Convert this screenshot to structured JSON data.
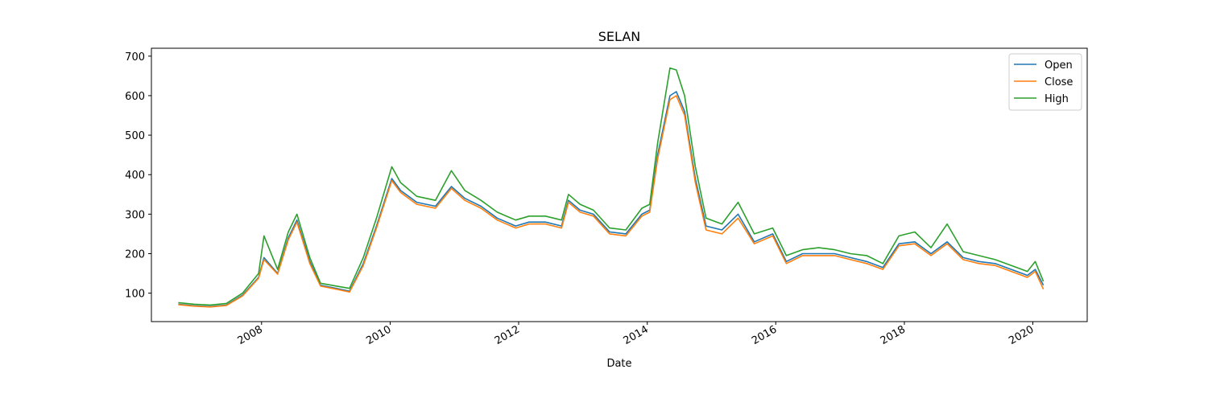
{
  "chart_data": {
    "type": "line",
    "title": "SELAN",
    "xlabel": "Date",
    "ylabel": "",
    "xlim": [
      "2006-04-15",
      "2020-11-05"
    ],
    "ylim": [
      28,
      720
    ],
    "x_ticks": [
      "2008-01-01",
      "2010-01-01",
      "2012-01-01",
      "2014-01-01",
      "2016-01-01",
      "2018-01-01",
      "2020-01-01"
    ],
    "x_tick_labels": [
      "2008",
      "2010",
      "2012",
      "2014",
      "2016",
      "2018",
      "2020"
    ],
    "y_ticks": [
      100,
      200,
      300,
      400,
      500,
      600,
      700
    ],
    "y_tick_labels": [
      "100",
      "200",
      "300",
      "400",
      "500",
      "600",
      "700"
    ],
    "grid": false,
    "legend_position": "top-right",
    "series": [
      {
        "name": "Open",
        "color": "#1f77b4",
        "x": [
          "2006-09-15",
          "2006-12-15",
          "2007-03-15",
          "2007-06-15",
          "2007-09-15",
          "2007-12-15",
          "2008-01-15",
          "2008-04-01",
          "2008-06-01",
          "2008-07-20",
          "2008-10-01",
          "2008-12-01",
          "2009-03-01",
          "2009-05-15",
          "2009-08-01",
          "2009-10-15",
          "2010-01-10",
          "2010-03-01",
          "2010-06-01",
          "2010-09-15",
          "2010-12-15",
          "2011-03-01",
          "2011-06-01",
          "2011-09-01",
          "2011-12-15",
          "2012-03-01",
          "2012-06-01",
          "2012-09-01",
          "2012-10-10",
          "2012-12-15",
          "2013-03-01",
          "2013-06-01",
          "2013-09-01",
          "2013-12-01",
          "2014-01-15",
          "2014-03-01",
          "2014-05-10",
          "2014-06-15",
          "2014-08-01",
          "2014-10-01",
          "2014-12-01",
          "2015-03-01",
          "2015-06-01",
          "2015-09-01",
          "2015-12-15",
          "2016-03-01",
          "2016-06-01",
          "2016-09-01",
          "2016-12-01",
          "2017-03-01",
          "2017-06-01",
          "2017-09-01",
          "2017-12-01",
          "2018-03-01",
          "2018-06-01",
          "2018-09-01",
          "2018-12-01",
          "2019-03-01",
          "2019-06-01",
          "2019-09-01",
          "2019-12-01",
          "2020-01-15",
          "2020-03-01"
        ],
        "values": [
          72,
          68,
          66,
          70,
          95,
          140,
          190,
          150,
          240,
          285,
          180,
          120,
          112,
          105,
          175,
          270,
          390,
          360,
          330,
          320,
          370,
          340,
          320,
          290,
          270,
          280,
          280,
          270,
          335,
          310,
          300,
          255,
          250,
          300,
          310,
          450,
          600,
          610,
          560,
          390,
          270,
          260,
          300,
          230,
          250,
          180,
          200,
          200,
          200,
          190,
          180,
          165,
          225,
          230,
          200,
          230,
          190,
          180,
          175,
          160,
          145,
          160,
          120
        ]
      },
      {
        "name": "Close",
        "color": "#ff7f0e",
        "x": [
          "2006-09-15",
          "2006-12-15",
          "2007-03-15",
          "2007-06-15",
          "2007-09-15",
          "2007-12-15",
          "2008-01-15",
          "2008-04-01",
          "2008-06-01",
          "2008-07-20",
          "2008-10-01",
          "2008-12-01",
          "2009-03-01",
          "2009-05-15",
          "2009-08-01",
          "2009-10-15",
          "2010-01-10",
          "2010-03-01",
          "2010-06-01",
          "2010-09-15",
          "2010-12-15",
          "2011-03-01",
          "2011-06-01",
          "2011-09-01",
          "2011-12-15",
          "2012-03-01",
          "2012-06-01",
          "2012-09-01",
          "2012-10-10",
          "2012-12-15",
          "2013-03-01",
          "2013-06-01",
          "2013-09-01",
          "2013-12-01",
          "2014-01-15",
          "2014-03-01",
          "2014-05-10",
          "2014-06-15",
          "2014-08-01",
          "2014-10-01",
          "2014-12-01",
          "2015-03-01",
          "2015-06-01",
          "2015-09-01",
          "2015-12-15",
          "2016-03-01",
          "2016-06-01",
          "2016-09-01",
          "2016-12-01",
          "2017-03-01",
          "2017-06-01",
          "2017-09-01",
          "2017-12-01",
          "2018-03-01",
          "2018-06-01",
          "2018-09-01",
          "2018-12-01",
          "2019-03-01",
          "2019-06-01",
          "2019-09-01",
          "2019-12-01",
          "2020-01-15",
          "2020-03-01"
        ],
        "values": [
          71,
          67,
          65,
          69,
          93,
          138,
          185,
          148,
          235,
          280,
          175,
          118,
          110,
          103,
          170,
          265,
          385,
          355,
          325,
          315,
          365,
          335,
          315,
          285,
          265,
          275,
          275,
          265,
          330,
          305,
          295,
          250,
          245,
          295,
          305,
          440,
          590,
          600,
          550,
          380,
          260,
          250,
          290,
          225,
          245,
          175,
          195,
          195,
          195,
          185,
          175,
          160,
          220,
          225,
          195,
          225,
          185,
          175,
          170,
          155,
          140,
          155,
          110
        ]
      },
      {
        "name": "High",
        "color": "#2ca02c",
        "x": [
          "2006-09-15",
          "2006-12-15",
          "2007-03-15",
          "2007-06-15",
          "2007-09-15",
          "2007-12-15",
          "2008-01-15",
          "2008-04-01",
          "2008-06-01",
          "2008-07-20",
          "2008-10-01",
          "2008-12-01",
          "2009-03-01",
          "2009-05-15",
          "2009-08-01",
          "2009-10-15",
          "2010-01-10",
          "2010-03-01",
          "2010-06-01",
          "2010-09-15",
          "2010-12-15",
          "2011-03-01",
          "2011-06-01",
          "2011-09-01",
          "2011-12-15",
          "2012-03-01",
          "2012-06-01",
          "2012-09-01",
          "2012-10-10",
          "2012-12-15",
          "2013-03-01",
          "2013-06-01",
          "2013-09-01",
          "2013-12-01",
          "2014-01-15",
          "2014-03-01",
          "2014-05-10",
          "2014-06-15",
          "2014-08-01",
          "2014-10-01",
          "2014-12-01",
          "2015-03-01",
          "2015-06-01",
          "2015-09-01",
          "2015-12-15",
          "2016-03-01",
          "2016-06-01",
          "2016-09-01",
          "2016-12-01",
          "2017-03-01",
          "2017-06-01",
          "2017-09-01",
          "2017-12-01",
          "2018-03-01",
          "2018-06-01",
          "2018-09-01",
          "2018-12-01",
          "2019-03-01",
          "2019-06-01",
          "2019-09-01",
          "2019-12-01",
          "2020-01-15",
          "2020-03-01"
        ],
        "values": [
          76,
          72,
          70,
          74,
          100,
          150,
          245,
          160,
          255,
          300,
          190,
          125,
          118,
          112,
          190,
          290,
          420,
          380,
          345,
          335,
          410,
          360,
          335,
          305,
          285,
          295,
          295,
          285,
          350,
          325,
          310,
          265,
          260,
          315,
          325,
          480,
          670,
          665,
          600,
          420,
          290,
          275,
          330,
          250,
          265,
          195,
          210,
          215,
          210,
          200,
          195,
          175,
          245,
          255,
          215,
          275,
          205,
          195,
          185,
          170,
          155,
          180,
          130
        ]
      }
    ]
  }
}
